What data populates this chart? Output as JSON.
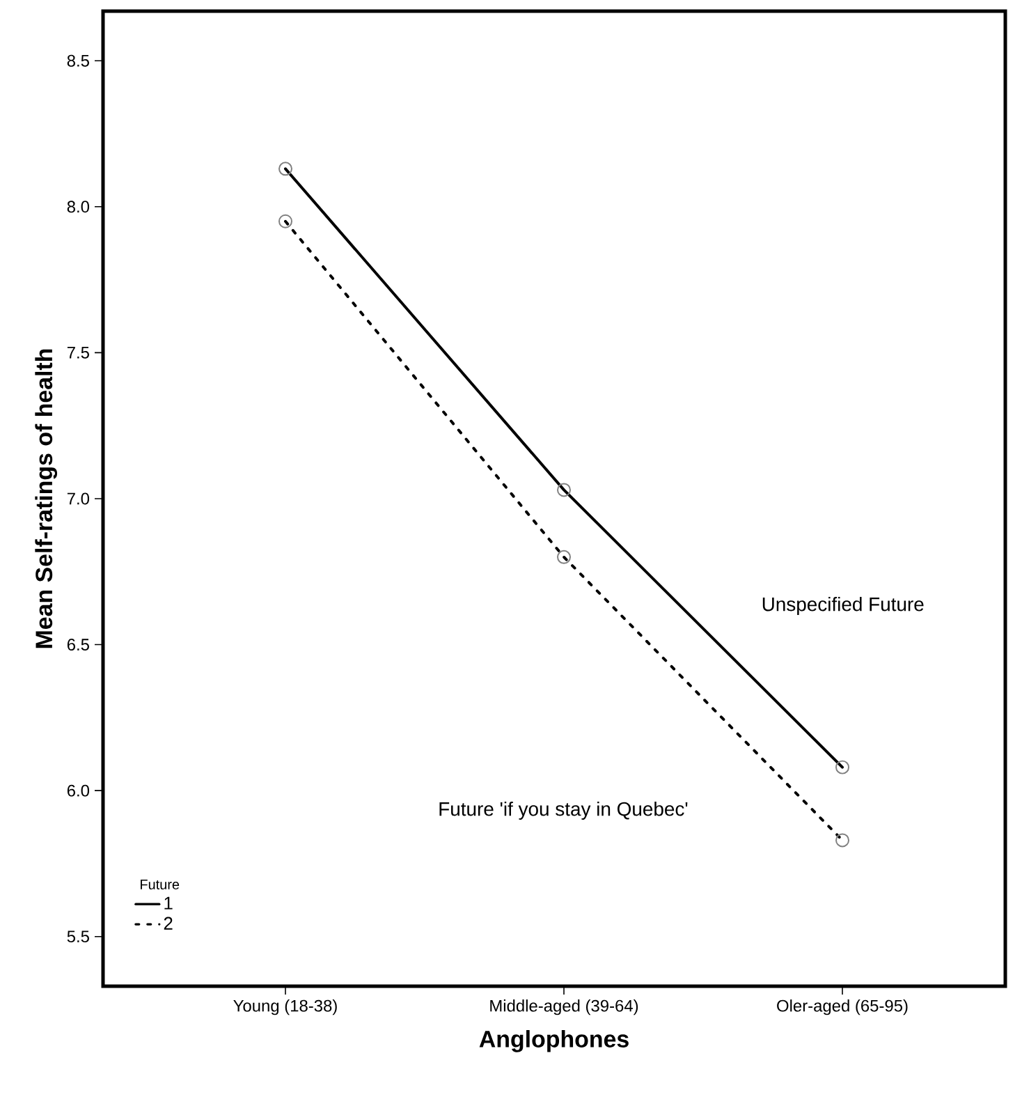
{
  "chart_data": {
    "type": "line",
    "xlabel": "Anglophones",
    "ylabel": "Mean Self-ratings of health",
    "categories": [
      "Young (18-38)",
      "Middle-aged (39-64)",
      "Oler-aged (65-95)"
    ],
    "series": [
      {
        "name": "1",
        "color": "#000000",
        "line_style": "solid",
        "values": [
          8.13,
          7.03,
          6.08
        ]
      },
      {
        "name": "2",
        "color": "#000000",
        "line_style": "dotted",
        "values": [
          7.95,
          6.8,
          5.83
        ]
      }
    ],
    "ylim": [
      5.33,
      8.67
    ],
    "yticks": [
      5.5,
      {
        "value": 6,
        "label": "6.0"
      },
      6.5,
      {
        "value": 7,
        "label": "7.0"
      },
      7.5,
      {
        "value": 8,
        "label": "8.0"
      },
      8.5
    ],
    "legend": "bottom left",
    "legend_title": "Future",
    "marker": "circle",
    "grid": false,
    "annotations": [
      "Unspecified Future",
      "Future 'if you stay in Quebec'"
    ]
  }
}
